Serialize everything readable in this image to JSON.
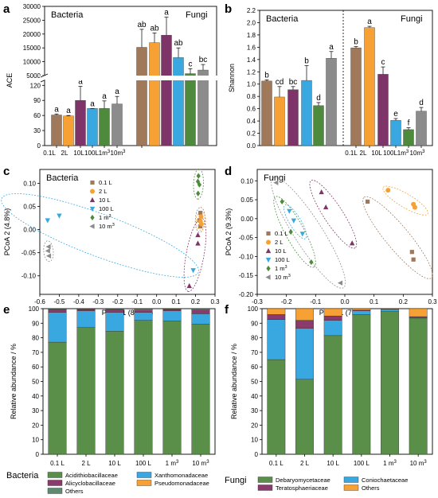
{
  "colors": {
    "0.1L": "#a0785a",
    "2L": "#f7a033",
    "10L": "#7e3468",
    "100L": "#3aa8e0",
    "1m3": "#4e8a3c",
    "10m3": "#8c8c8c",
    "Acidithiobacillaceae": "#5a8f4a",
    "Xanthomonadaceae": "#3aa8e0",
    "Alicyclobacillaceae": "#8b3a6e",
    "Pseudomonadaceae": "#f7a033",
    "Others_b": "#5f8a70",
    "Debaryomycetaceae": "#5a8f4a",
    "Coniochaetaceae": "#3aa8e0",
    "Teratosphaeriaceae": "#8b3a6e",
    "Others_f": "#f7a033"
  },
  "chart_data": [
    {
      "panel": "a",
      "type": "bar",
      "ylabel": "ACE",
      "groups": [
        "Bacteria",
        "Fungi"
      ],
      "categories": [
        "0.1L",
        "2L",
        "10L",
        "100L",
        "1m³",
        "10m³"
      ],
      "series": [
        {
          "name": "Bacteria",
          "values": [
            61,
            59,
            90,
            74,
            74,
            83
          ],
          "errors": [
            2,
            1,
            28,
            0,
            15,
            15
          ],
          "letters": [
            "a",
            "a",
            "a",
            "a",
            "a",
            "a"
          ]
        },
        {
          "name": "Fungi",
          "values": [
            15200,
            16900,
            19600,
            11500,
            5700,
            7000
          ],
          "errors": [
            6500,
            3500,
            6500,
            3500,
            1800,
            2000
          ],
          "letters": [
            "ab",
            "ab",
            "a",
            "ab",
            "c",
            "bc"
          ]
        }
      ],
      "axis_break": [
        130,
        5000
      ],
      "lower_ticks": [
        "0",
        "30",
        "60",
        "90",
        "120"
      ],
      "upper_ticks": [
        "5000",
        "10000",
        "15000",
        "20000",
        "25000",
        "30000"
      ],
      "x_ticks": [
        "0.1L",
        "2L",
        "10L",
        "100L",
        "1m³",
        "10m³"
      ]
    },
    {
      "panel": "b",
      "type": "bar",
      "ylabel": "Shannon",
      "groups": [
        "Bacteria",
        "Fungi"
      ],
      "categories": [
        "0.1L",
        "2L",
        "10L",
        "100L",
        "1m³",
        "10m³"
      ],
      "series": [
        {
          "name": "Bacteria",
          "values": [
            1.05,
            0.79,
            0.91,
            1.06,
            0.65,
            1.42
          ],
          "errors": [
            0.02,
            0.17,
            0.05,
            0.24,
            0.05,
            0.11
          ],
          "letters": [
            "b",
            "cd",
            "bc",
            "b",
            "d",
            "a"
          ]
        },
        {
          "name": "Fungi",
          "values": [
            1.59,
            1.92,
            1.16,
            0.41,
            0.26,
            0.56
          ],
          "errors": [
            0.02,
            0.02,
            0.12,
            0.03,
            0.03,
            0.06
          ],
          "letters": [
            "b",
            "a",
            "c",
            "e",
            "f",
            "d"
          ]
        }
      ],
      "ylim": [
        0,
        2.2
      ],
      "y_ticks": [
        "0.0",
        "0.2",
        "0.4",
        "0.6",
        "0.8",
        "1.0",
        "1.2",
        "1.4",
        "1.6",
        "1.8",
        "2.0",
        "2.2"
      ],
      "x_ticks": [
        "0.1L",
        "2L",
        "10L",
        "100L",
        "1m³",
        "10m³"
      ]
    },
    {
      "panel": "c",
      "type": "scatter",
      "title": "Bacteria",
      "xlabel": "PCoA 1 (85.8%)",
      "ylabel": "PCoA 2 (4.8%)",
      "xlim": [
        -0.6,
        0.3
      ],
      "ylim": [
        -0.14,
        0.13
      ],
      "x_ticks": [
        "-0.6",
        "-0.5",
        "-0.4",
        "-0.3",
        "-0.2",
        "-0.1",
        "0.0",
        "0.1",
        "0.2",
        "0.3"
      ],
      "y_ticks": [
        "-0.10",
        "-0.05",
        "0.00",
        "0.05",
        "0.10"
      ],
      "legend": [
        "0.1 L",
        "2 L",
        "10 L",
        "100 L",
        "1 m³",
        "10 m³"
      ],
      "points": [
        {
          "g": "0.1L",
          "x": 0.225,
          "y": 0.036
        },
        {
          "g": "0.1L",
          "x": 0.22,
          "y": 0.02
        },
        {
          "g": "0.1L",
          "x": 0.225,
          "y": 0.007
        },
        {
          "g": "2L",
          "x": 0.228,
          "y": 0.028
        },
        {
          "g": "2L",
          "x": 0.225,
          "y": 0.018
        },
        {
          "g": "2L",
          "x": 0.23,
          "y": 0.012
        },
        {
          "g": "10L",
          "x": 0.212,
          "y": -0.012
        },
        {
          "g": "10L",
          "x": 0.212,
          "y": -0.03
        },
        {
          "g": "10L",
          "x": 0.168,
          "y": -0.122
        },
        {
          "g": "100L",
          "x": -0.56,
          "y": 0.02
        },
        {
          "g": "100L",
          "x": -0.5,
          "y": 0.03
        },
        {
          "g": "100L",
          "x": 0.188,
          "y": -0.088
        },
        {
          "g": "1m3",
          "x": 0.215,
          "y": 0.116
        },
        {
          "g": "1m3",
          "x": 0.212,
          "y": 0.104
        },
        {
          "g": "1m3",
          "x": 0.22,
          "y": 0.097
        },
        {
          "g": "1m3",
          "x": 0.213,
          "y": 0.078
        },
        {
          "g": "10m3",
          "x": -0.555,
          "y": -0.037
        },
        {
          "g": "10m3",
          "x": -0.558,
          "y": -0.046
        },
        {
          "g": "10m3",
          "x": -0.553,
          "y": -0.057
        }
      ]
    },
    {
      "panel": "d",
      "type": "scatter",
      "title": "Fungi",
      "xlabel": "PCoA 1 (75.9%)",
      "ylabel": "PCoA 2 (9.3%)",
      "xlim": [
        -0.3,
        0.3
      ],
      "ylim": [
        -0.2,
        0.13
      ],
      "x_ticks": [
        "-0.3",
        "-0.2",
        "-0.1",
        "0.0",
        "0.1",
        "0.2",
        "0.3"
      ],
      "y_ticks": [
        "-0.20",
        "-0.15",
        "-0.10",
        "-0.05",
        "0.00",
        "0.05",
        "0.10"
      ],
      "legend": [
        "0.1 L",
        "2 L",
        "10 L",
        "100 L",
        "1 m³",
        "10 m³"
      ],
      "points": [
        {
          "g": "0.1L",
          "x": 0.078,
          "y": 0.045
        },
        {
          "g": "0.1L",
          "x": 0.23,
          "y": -0.088
        },
        {
          "g": "0.1L",
          "x": 0.235,
          "y": -0.108
        },
        {
          "g": "2L",
          "x": 0.148,
          "y": 0.075
        },
        {
          "g": "2L",
          "x": 0.235,
          "y": 0.038
        },
        {
          "g": "2L",
          "x": 0.24,
          "y": 0.03
        },
        {
          "g": "10L",
          "x": -0.08,
          "y": 0.07
        },
        {
          "g": "10L",
          "x": -0.065,
          "y": 0.03
        },
        {
          "g": "10L",
          "x": 0.025,
          "y": -0.065
        },
        {
          "g": "100L",
          "x": -0.19,
          "y": 0.02
        },
        {
          "g": "100L",
          "x": -0.175,
          "y": -0.005
        },
        {
          "g": "100L",
          "x": -0.145,
          "y": -0.04
        },
        {
          "g": "1m3",
          "x": -0.215,
          "y": 0.045
        },
        {
          "g": "1m3",
          "x": -0.185,
          "y": -0.035
        },
        {
          "g": "1m3",
          "x": -0.115,
          "y": -0.115
        },
        {
          "g": "10m3",
          "x": -0.235,
          "y": 0.095
        },
        {
          "g": "10m3",
          "x": -0.015,
          "y": -0.17
        }
      ]
    },
    {
      "panel": "e",
      "type": "bar",
      "stacked": true,
      "ylabel": "Relative abundance / %",
      "legend_title": "Bacteria",
      "categories": [
        "0.1 L",
        "2 L",
        "10 L",
        "100 L",
        "1 m³",
        "10 m³"
      ],
      "ylim": [
        0,
        100
      ],
      "y_ticks": [
        "0",
        "10",
        "20",
        "30",
        "40",
        "50",
        "60",
        "70",
        "80",
        "90",
        "100"
      ],
      "series": [
        {
          "name": "Acidithiobacillaceae",
          "values": [
            77,
            87,
            84.5,
            92,
            91.5,
            89.5
          ]
        },
        {
          "name": "Xanthomonadaceae",
          "values": [
            20.5,
            11.5,
            13,
            5.5,
            7,
            7
          ]
        },
        {
          "name": "Alicyclobacillaceae",
          "values": [
            1.8,
            1,
            1.8,
            1.6,
            1,
            2.5
          ]
        },
        {
          "name": "Pseudomonadaceae",
          "values": [
            0.3,
            0.3,
            0.3,
            0.5,
            0.3,
            0.5
          ]
        },
        {
          "name": "Others",
          "values": [
            0.4,
            0.2,
            0.4,
            0.4,
            0.2,
            0.5
          ]
        }
      ]
    },
    {
      "panel": "f",
      "type": "bar",
      "stacked": true,
      "ylabel": "Relative abundance / %",
      "legend_title": "Fungi",
      "categories": [
        "0.1 L",
        "2 L",
        "10 L",
        "100 L",
        "1 m³",
        "10 m³"
      ],
      "ylim": [
        0,
        100
      ],
      "y_ticks": [
        "0",
        "10",
        "20",
        "30",
        "40",
        "50",
        "60",
        "70",
        "80",
        "90",
        "100"
      ],
      "series": [
        {
          "name": "Debaryomycetaceae",
          "values": [
            65,
            51.5,
            81.5,
            96,
            98,
            93.5
          ]
        },
        {
          "name": "Coniochaetaceae",
          "values": [
            27.5,
            35,
            10.5,
            2.5,
            1.5,
            0.5
          ]
        },
        {
          "name": "Teratosphaeriaceae",
          "values": [
            3.5,
            5.5,
            3,
            0.5,
            0.2,
            0.5
          ]
        },
        {
          "name": "Others",
          "values": [
            4,
            8,
            5,
            1,
            0.3,
            5.5
          ]
        }
      ]
    }
  ]
}
